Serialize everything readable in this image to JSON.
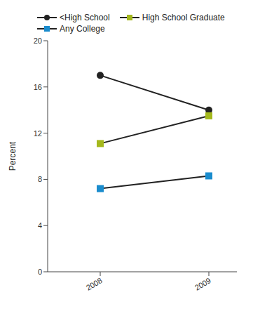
{
  "chart_data": {
    "type": "line",
    "categories": [
      "2008",
      "2009"
    ],
    "ylabel": "Percent",
    "ylim": [
      0,
      20
    ],
    "yticks": [
      0,
      4,
      8,
      12,
      16,
      20
    ],
    "grid": false,
    "legend": "top",
    "series": [
      {
        "name": "<High School",
        "color": "#222222",
        "marker": "circle",
        "values": [
          17,
          14
        ]
      },
      {
        "name": "High School Graduate",
        "color": "#a4b81c",
        "marker": "square",
        "values": [
          11.1,
          13.5
        ]
      },
      {
        "name": "Any College",
        "color": "#1a8ccd",
        "marker": "square",
        "values": [
          7.2,
          8.3
        ]
      }
    ]
  }
}
